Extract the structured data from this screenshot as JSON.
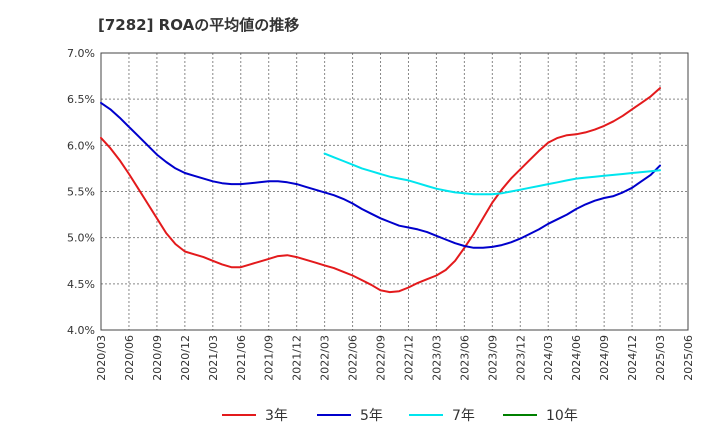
{
  "chart_data": {
    "type": "line",
    "title": "[7282]  ROAの平均値の推移",
    "xlabel": "",
    "ylabel": "",
    "ylim": [
      4.0,
      7.0
    ],
    "y_ticks": [
      "4.0%",
      "4.5%",
      "5.0%",
      "5.5%",
      "6.0%",
      "6.5%",
      "7.0%"
    ],
    "x_ticks": [
      "2020/03",
      "2020/06",
      "2020/09",
      "2020/12",
      "2021/03",
      "2021/06",
      "2021/09",
      "2021/12",
      "2022/03",
      "2022/06",
      "2022/09",
      "2022/12",
      "2023/03",
      "2023/06",
      "2023/09",
      "2023/12",
      "2024/03",
      "2024/06",
      "2024/09",
      "2024/12",
      "2025/03",
      "2025/06"
    ],
    "grid": true,
    "legend_position": "bottom",
    "series": [
      {
        "name": "3年",
        "color": "#e31a1c",
        "values": [
          [
            "2020/03",
            6.08
          ],
          [
            "2020/04",
            5.97
          ],
          [
            "2020/05",
            5.84
          ],
          [
            "2020/06",
            5.69
          ],
          [
            "2020/07",
            5.53
          ],
          [
            "2020/08",
            5.37
          ],
          [
            "2020/09",
            5.21
          ],
          [
            "2020/10",
            5.05
          ],
          [
            "2020/11",
            4.93
          ],
          [
            "2020/12",
            4.85
          ],
          [
            "2021/01",
            4.82
          ],
          [
            "2021/02",
            4.79
          ],
          [
            "2021/03",
            4.75
          ],
          [
            "2021/04",
            4.71
          ],
          [
            "2021/05",
            4.68
          ],
          [
            "2021/06",
            4.68
          ],
          [
            "2021/07",
            4.71
          ],
          [
            "2021/08",
            4.74
          ],
          [
            "2021/09",
            4.77
          ],
          [
            "2021/10",
            4.8
          ],
          [
            "2021/11",
            4.81
          ],
          [
            "2021/12",
            4.79
          ],
          [
            "2022/01",
            4.76
          ],
          [
            "2022/02",
            4.73
          ],
          [
            "2022/03",
            4.7
          ],
          [
            "2022/04",
            4.67
          ],
          [
            "2022/05",
            4.63
          ],
          [
            "2022/06",
            4.59
          ],
          [
            "2022/07",
            4.54
          ],
          [
            "2022/08",
            4.49
          ],
          [
            "2022/09",
            4.43
          ],
          [
            "2022/10",
            4.41
          ],
          [
            "2022/11",
            4.42
          ],
          [
            "2022/12",
            4.46
          ],
          [
            "2023/01",
            4.51
          ],
          [
            "2023/02",
            4.55
          ],
          [
            "2023/03",
            4.59
          ],
          [
            "2023/04",
            4.65
          ],
          [
            "2023/05",
            4.75
          ],
          [
            "2023/06",
            4.89
          ],
          [
            "2023/07",
            5.04
          ],
          [
            "2023/08",
            5.21
          ],
          [
            "2023/09",
            5.38
          ],
          [
            "2023/10",
            5.52
          ],
          [
            "2023/11",
            5.64
          ],
          [
            "2023/12",
            5.74
          ],
          [
            "2024/01",
            5.84
          ],
          [
            "2024/02",
            5.94
          ],
          [
            "2024/03",
            6.03
          ],
          [
            "2024/04",
            6.08
          ],
          [
            "2024/05",
            6.11
          ],
          [
            "2024/06",
            6.12
          ],
          [
            "2024/07",
            6.14
          ],
          [
            "2024/08",
            6.17
          ],
          [
            "2024/09",
            6.21
          ],
          [
            "2024/10",
            6.26
          ],
          [
            "2024/11",
            6.32
          ],
          [
            "2024/12",
            6.39
          ],
          [
            "2025/01",
            6.46
          ],
          [
            "2025/02",
            6.53
          ],
          [
            "2025/03",
            6.62
          ]
        ]
      },
      {
        "name": "5年",
        "color": "#0000cc",
        "values": [
          [
            "2020/03",
            6.46
          ],
          [
            "2020/04",
            6.39
          ],
          [
            "2020/05",
            6.3
          ],
          [
            "2020/06",
            6.2
          ],
          [
            "2020/07",
            6.1
          ],
          [
            "2020/08",
            6.0
          ],
          [
            "2020/09",
            5.9
          ],
          [
            "2020/10",
            5.82
          ],
          [
            "2020/11",
            5.75
          ],
          [
            "2020/12",
            5.7
          ],
          [
            "2021/01",
            5.67
          ],
          [
            "2021/02",
            5.64
          ],
          [
            "2021/03",
            5.61
          ],
          [
            "2021/04",
            5.59
          ],
          [
            "2021/05",
            5.58
          ],
          [
            "2021/06",
            5.58
          ],
          [
            "2021/07",
            5.59
          ],
          [
            "2021/08",
            5.6
          ],
          [
            "2021/09",
            5.61
          ],
          [
            "2021/10",
            5.61
          ],
          [
            "2021/11",
            5.6
          ],
          [
            "2021/12",
            5.58
          ],
          [
            "2022/01",
            5.55
          ],
          [
            "2022/02",
            5.52
          ],
          [
            "2022/03",
            5.49
          ],
          [
            "2022/04",
            5.46
          ],
          [
            "2022/05",
            5.42
          ],
          [
            "2022/06",
            5.37
          ],
          [
            "2022/07",
            5.31
          ],
          [
            "2022/08",
            5.26
          ],
          [
            "2022/09",
            5.21
          ],
          [
            "2022/10",
            5.17
          ],
          [
            "2022/11",
            5.13
          ],
          [
            "2022/12",
            5.11
          ],
          [
            "2023/01",
            5.09
          ],
          [
            "2023/02",
            5.06
          ],
          [
            "2023/03",
            5.02
          ],
          [
            "2023/04",
            4.98
          ],
          [
            "2023/05",
            4.94
          ],
          [
            "2023/06",
            4.91
          ],
          [
            "2023/07",
            4.89
          ],
          [
            "2023/08",
            4.89
          ],
          [
            "2023/09",
            4.9
          ],
          [
            "2023/10",
            4.92
          ],
          [
            "2023/11",
            4.95
          ],
          [
            "2023/12",
            4.99
          ],
          [
            "2024/01",
            5.04
          ],
          [
            "2024/02",
            5.09
          ],
          [
            "2024/03",
            5.15
          ],
          [
            "2024/04",
            5.2
          ],
          [
            "2024/05",
            5.25
          ],
          [
            "2024/06",
            5.31
          ],
          [
            "2024/07",
            5.36
          ],
          [
            "2024/08",
            5.4
          ],
          [
            "2024/09",
            5.43
          ],
          [
            "2024/10",
            5.45
          ],
          [
            "2024/11",
            5.49
          ],
          [
            "2024/12",
            5.54
          ],
          [
            "2025/01",
            5.61
          ],
          [
            "2025/02",
            5.68
          ],
          [
            "2025/03",
            5.78
          ]
        ]
      },
      {
        "name": "7年",
        "color": "#00e5ee",
        "values": [
          [
            "2022/03",
            5.91
          ],
          [
            "2022/04",
            5.87
          ],
          [
            "2022/05",
            5.83
          ],
          [
            "2022/06",
            5.79
          ],
          [
            "2022/07",
            5.75
          ],
          [
            "2022/08",
            5.72
          ],
          [
            "2022/09",
            5.69
          ],
          [
            "2022/10",
            5.66
          ],
          [
            "2022/11",
            5.64
          ],
          [
            "2022/12",
            5.62
          ],
          [
            "2023/01",
            5.59
          ],
          [
            "2023/02",
            5.56
          ],
          [
            "2023/03",
            5.53
          ],
          [
            "2023/04",
            5.51
          ],
          [
            "2023/05",
            5.49
          ],
          [
            "2023/06",
            5.48
          ],
          [
            "2023/07",
            5.47
          ],
          [
            "2023/08",
            5.47
          ],
          [
            "2023/09",
            5.47
          ],
          [
            "2023/10",
            5.48
          ],
          [
            "2023/11",
            5.5
          ],
          [
            "2023/12",
            5.52
          ],
          [
            "2024/01",
            5.54
          ],
          [
            "2024/02",
            5.56
          ],
          [
            "2024/03",
            5.58
          ],
          [
            "2024/04",
            5.6
          ],
          [
            "2024/05",
            5.62
          ],
          [
            "2024/06",
            5.64
          ],
          [
            "2024/07",
            5.65
          ],
          [
            "2024/08",
            5.66
          ],
          [
            "2024/09",
            5.67
          ],
          [
            "2024/10",
            5.68
          ],
          [
            "2024/11",
            5.69
          ],
          [
            "2024/12",
            5.7
          ],
          [
            "2025/01",
            5.71
          ],
          [
            "2025/02",
            5.72
          ],
          [
            "2025/03",
            5.73
          ]
        ]
      },
      {
        "name": "10年",
        "color": "#008000",
        "values": []
      }
    ]
  }
}
